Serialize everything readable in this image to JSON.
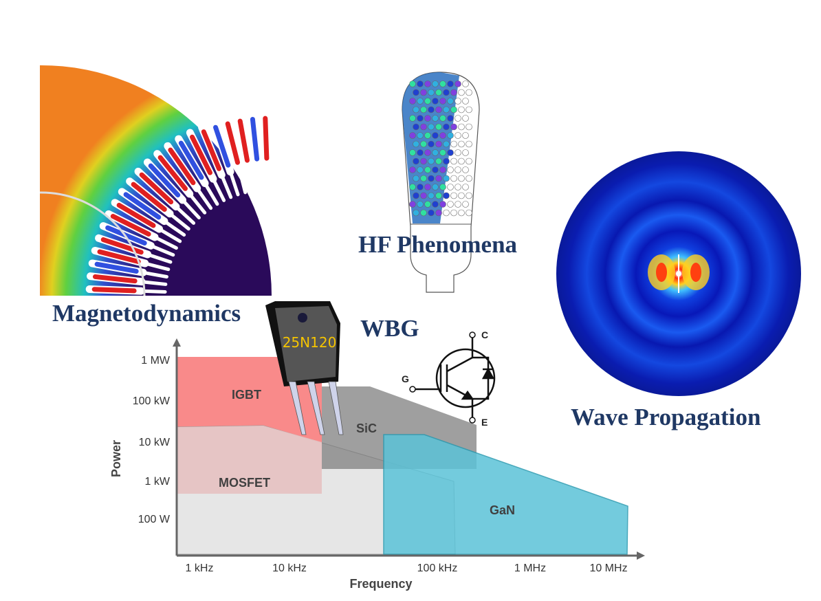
{
  "titles": {
    "magnetodynamics": "Magnetodynamics",
    "hf": "HF Phenomena",
    "wbg": "WBG",
    "wave": "Wave Propagation"
  },
  "transistor": {
    "marking": "25N120"
  },
  "igbt_symbol": {
    "gate": "G",
    "collector": "C",
    "emitter": "E"
  },
  "chart_data": {
    "type": "area",
    "xlabel": "Frequency",
    "ylabel": "Power",
    "x_ticks": [
      "1 kHz",
      "10 kHz",
      "100 kHz",
      "1 MHz",
      "10 MHz"
    ],
    "y_ticks": [
      "1 MW",
      "100 kW",
      "10 kW",
      "1 kW",
      "100 W"
    ],
    "regions": [
      {
        "name": "IGBT",
        "color": "#f98a8a"
      },
      {
        "name": "MOSFET",
        "color": "#e6c3c3"
      },
      {
        "name": "SiC",
        "color": "#7f7f7f"
      },
      {
        "name": "GaN",
        "color": "#5bc3d8"
      }
    ]
  }
}
